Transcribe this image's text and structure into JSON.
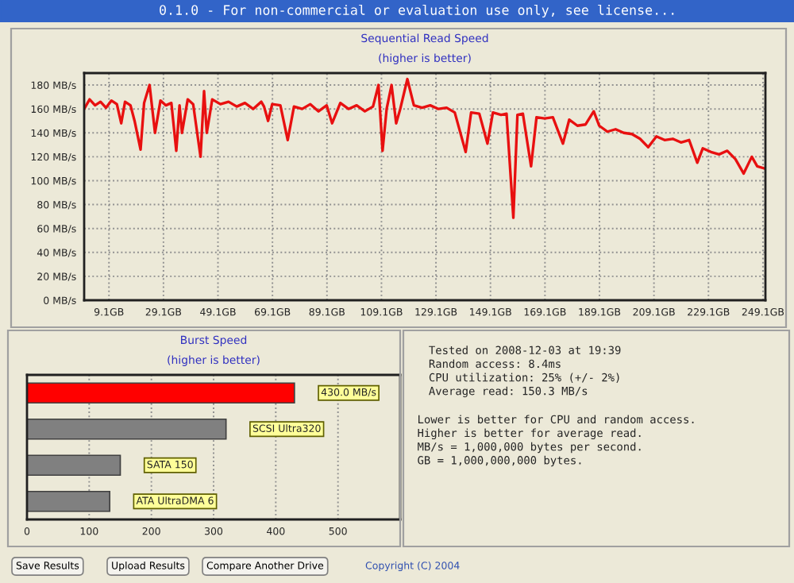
{
  "chart_data": [
    {
      "type": "other",
      "annotations": [
        "0.1.0 - For non-commercial or evaluation use only, see license..."
      ]
    },
    {
      "type": "line",
      "title": "Sequential Read Speed",
      "subtitle": "(higher is better)",
      "xlim": [
        0,
        250
      ],
      "ylim": [
        0,
        190
      ],
      "xticks": [
        {
          "value": 9.1,
          "label": "9.1GB"
        },
        {
          "value": 29.1,
          "label": "29.1GB"
        },
        {
          "value": 49.1,
          "label": "49.1GB"
        },
        {
          "value": 69.1,
          "label": "69.1GB"
        },
        {
          "value": 89.1,
          "label": "89.1GB"
        },
        {
          "value": 109.1,
          "label": "109.1GB"
        },
        {
          "value": 129.1,
          "label": "129.1GB"
        },
        {
          "value": 149.1,
          "label": "149.1GB"
        },
        {
          "value": 169.1,
          "label": "169.1GB"
        },
        {
          "value": 189.1,
          "label": "189.1GB"
        },
        {
          "value": 209.1,
          "label": "209.1GB"
        },
        {
          "value": 229.1,
          "label": "229.1GB"
        },
        {
          "value": 249.1,
          "label": "249.1GB"
        }
      ],
      "yticks": [
        {
          "value": 0,
          "label": "0 MB/s"
        },
        {
          "value": 20,
          "label": "20 MB/s"
        },
        {
          "value": 40,
          "label": "40 MB/s"
        },
        {
          "value": 60,
          "label": "60 MB/s"
        },
        {
          "value": 80,
          "label": "80 MB/s"
        },
        {
          "value": 100,
          "label": "100 MB/s"
        },
        {
          "value": 120,
          "label": "120 MB/s"
        },
        {
          "value": 140,
          "label": "140 MB/s"
        },
        {
          "value": 160,
          "label": "160 MB/s"
        },
        {
          "value": 180,
          "label": "180 MB/s"
        }
      ],
      "grid": true,
      "line_style": "solid",
      "series": [
        {
          "color": "#e81010",
          "x": [
            0,
            2,
            4,
            6,
            8,
            10,
            12,
            13.6,
            15,
            17,
            18.5,
            20.7,
            22,
            24,
            26,
            28,
            30,
            32,
            33.8,
            35,
            35.9,
            38,
            40,
            42.7,
            44,
            45,
            47,
            50,
            53,
            56,
            59,
            62,
            65,
            66,
            67.5,
            69,
            72,
            74.7,
            77,
            80,
            83,
            86,
            89,
            91,
            94,
            97,
            100,
            103,
            106,
            108,
            109.5,
            111,
            112.8,
            114.5,
            116,
            118.6,
            121,
            124,
            127,
            130,
            133,
            136,
            140,
            142,
            145,
            148,
            150,
            153,
            155,
            157.5,
            159,
            161,
            164,
            166,
            169,
            172,
            175.7,
            178,
            181,
            184,
            187,
            189,
            192,
            195,
            198,
            201,
            204,
            207,
            210,
            213,
            216,
            219,
            222,
            225,
            227,
            230,
            233,
            236,
            239,
            242,
            245,
            247,
            250
          ],
          "values": [
            160,
            168,
            163,
            166,
            161,
            167,
            164,
            148,
            166,
            163,
            150,
            126,
            165,
            180,
            140,
            167,
            163,
            165,
            125,
            163,
            140,
            168,
            164,
            120,
            175,
            140,
            168,
            164,
            166,
            162,
            165,
            160,
            166,
            162,
            150,
            164,
            163,
            134,
            162,
            160,
            164,
            158,
            163,
            148,
            165,
            160,
            163,
            158,
            162,
            180,
            125,
            160,
            180,
            148,
            160,
            185,
            163,
            161,
            163,
            160,
            161,
            157,
            124,
            157,
            156,
            131,
            157,
            155,
            156,
            69,
            155,
            156,
            112,
            153,
            152,
            153,
            131,
            151,
            146,
            147,
            158,
            146,
            141,
            143,
            140,
            139,
            135,
            128,
            137,
            134,
            135,
            132,
            134,
            115,
            127,
            124,
            122,
            125,
            118,
            106,
            120,
            112,
            110
          ]
        }
      ]
    },
    {
      "type": "bar",
      "orientation": "horizontal",
      "title": "Burst Speed",
      "subtitle": "(higher is better)",
      "categories": [
        null,
        null,
        null,
        null
      ],
      "values": [
        430,
        320,
        150,
        133
      ],
      "colors": [
        "#ff0000",
        "#808080",
        "#808080",
        "#808080"
      ],
      "value_labels": [
        "430.0 MB/s",
        "SCSI Ultra320",
        "SATA 150",
        "ATA UltraDMA 6"
      ],
      "xlim": [
        0,
        600
      ],
      "xticks": [
        0,
        100,
        200,
        300,
        400,
        500
      ],
      "grid": "x"
    },
    {
      "type": "other",
      "annotations": [
        "Tested on 2008-12-03 at 19:39",
        "Random access: 8.4ms",
        "CPU utilization: 25% (+/- 2%)",
        "Average read: 150.3 MB/s",
        "Lower is better for CPU and random access.",
        "Higher is better for average read.",
        "MB/s = 1,000,000 bytes per second.",
        "GB = 1,000,000,000 bytes."
      ]
    },
    {
      "type": "other",
      "annotations": [
        "Save Results",
        "Upload Results",
        "Compare Another Drive",
        "Copyright (C) 2004"
      ]
    }
  ]
}
